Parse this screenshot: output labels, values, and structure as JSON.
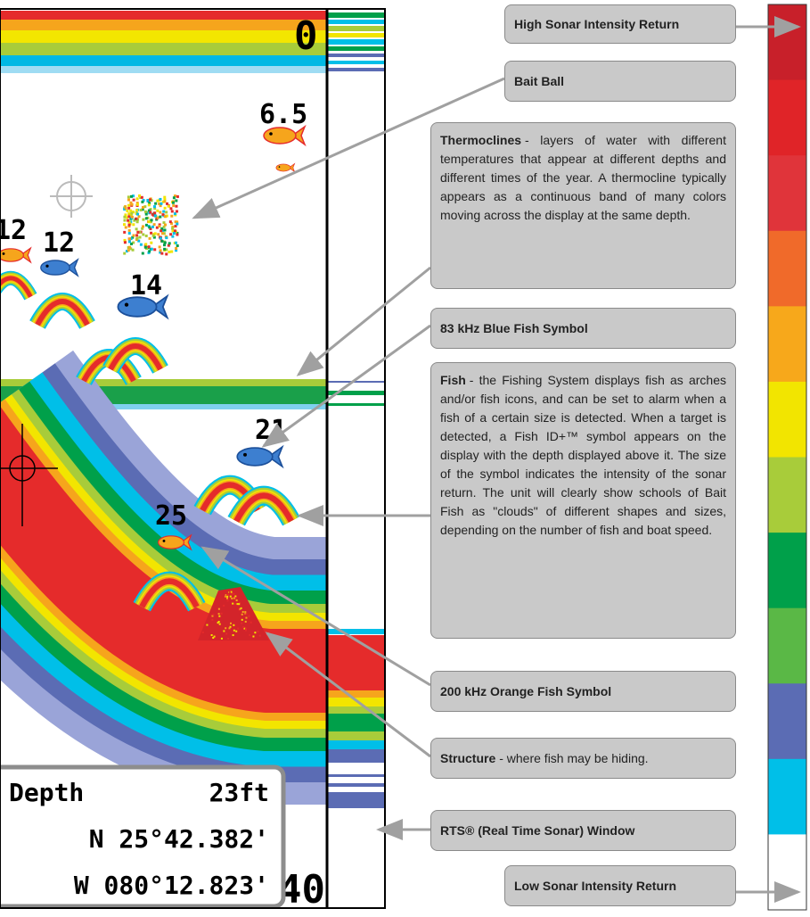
{
  "sonar": {
    "depth_scale_top": "0",
    "depth_scale_bottom": "40",
    "fish_depths": [
      "6.5",
      "12",
      "12",
      "14",
      "21",
      "25"
    ],
    "info": {
      "depth_label": "Depth",
      "depth_value": "23ft",
      "latitude": "N 25°42.382'",
      "longitude": "W 080°12.823'"
    }
  },
  "callouts": [
    {
      "title": "High Sonar Intensity Return"
    },
    {
      "title": "Bait Ball"
    },
    {
      "title": "Thermoclines",
      "text": "- layers of water with different temperatures that appear at different depths and different times of the year. A thermocline typically appears as a continuous band of many colors moving across the display at the same depth."
    },
    {
      "title": "83 kHz Blue Fish Symbol"
    },
    {
      "title": "Fish",
      "text": "- the Fishing System displays fish as arches and/or fish icons, and can be set to alarm when a fish of a certain size is detected. When a target is detected, a Fish ID+™ symbol appears on the display with the depth displayed above it. The size of the symbol indicates the intensity of the sonar return. The unit will clearly show schools of Bait Fish as \"clouds\" of different shapes and sizes, depending on the number of fish and boat speed."
    },
    {
      "title": "200 kHz Orange Fish Symbol"
    },
    {
      "title": "Structure",
      "text": "- where fish may be hiding."
    },
    {
      "title": "RTS® (Real Time Sonar) Window"
    },
    {
      "title": "Low Sonar Intensity Return"
    }
  ]
}
